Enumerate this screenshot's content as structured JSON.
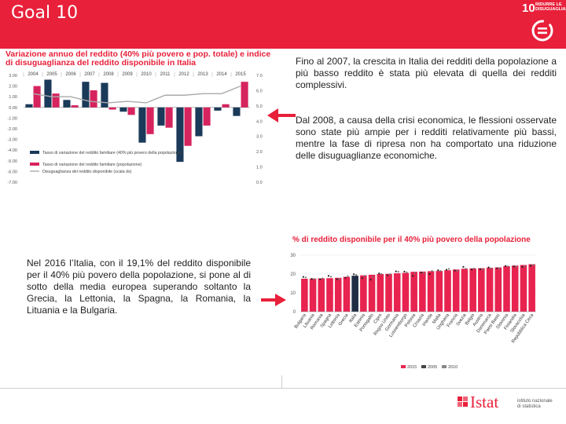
{
  "header": {
    "title": "Goal 10",
    "logo_number": "10",
    "logo_line1": "RIDURRE LE",
    "logo_line2": "DISUGUAGLIANZE"
  },
  "chart1": {
    "title": "Variazione annuo del reddito (40% più povero e pop. totale) e indice di disuguaglianza del reddito disponibile in Italia"
  },
  "chart2": {
    "title": "% di reddito disponibile per il 40% più povero della popolazione"
  },
  "text": {
    "paragraph1": "Fino al 2007, la crescita in Italia dei redditi della popolazione a più basso reddito è stata più elevata di quella dei redditi complessivi.",
    "paragraph2": "Dal 2008, a causa della crisi economica, le flessioni osservate sono state più ampie per i redditi relativamente più bassi, mentre la fase di ripresa non ha comportato una riduzione delle disuguaglianze economiche.",
    "paragraph3": "Nel 2016 l’Italia, con il 19,1% del reddito disponibile per il 40% più povero della popolazione, si pone al di sotto della media europea superando soltanto la Grecia, la Lettonia, la Spagna, la Romania, la Lituania e la Bulgaria."
  },
  "footer": {
    "brand": "Istat",
    "brand_sub1": "istituto nazionale",
    "brand_sub2": "di statistica"
  },
  "colors": {
    "brand_red": "#e8203a",
    "navy": "#1b3a5a",
    "magenta": "#d6245e",
    "gray_line": "#aaaaaa",
    "bar_pink": "#e8234f",
    "dark_bar": "#1f2e45"
  },
  "chart_data": [
    {
      "type": "bar",
      "title": "Variazione annuo del reddito (40% più povero e pop. totale) e indice di disuguaglianza del reddito disponibile in Italia",
      "categories": [
        "2004",
        "2005",
        "2006",
        "2007",
        "2008",
        "2009",
        "2010",
        "2011",
        "2012",
        "2013",
        "2014",
        "2015"
      ],
      "series": [
        {
          "name": "Tasso di variazione del reddito familiare (40% più povero della popolazione)",
          "type": "bar",
          "values": [
            0.3,
            2.6,
            0.7,
            2.4,
            2.3,
            -0.4,
            -3.3,
            -1.7,
            -5.1,
            -2.7,
            -0.3,
            -0.8
          ]
        },
        {
          "name": "Tasso di variazione del reddito familiare (popolazione)",
          "type": "bar",
          "values": [
            2.0,
            1.3,
            0.2,
            1.6,
            -0.2,
            -0.7,
            -2.5,
            -1.9,
            -3.6,
            -1.7,
            0.3,
            2.4
          ]
        },
        {
          "name": "Disuguaglianza del reddito disponibile (scala dx)",
          "type": "line",
          "values": [
            5.8,
            5.6,
            5.6,
            5.3,
            5.2,
            5.3,
            5.2,
            5.7,
            5.7,
            5.8,
            5.8,
            6.3
          ]
        }
      ],
      "ylim": [
        -7.0,
        3.0
      ],
      "y_ticks": [
        "3.00",
        "2.00",
        "1.00",
        "0.00",
        "-1.00",
        "-2.00",
        "-3.00",
        "-4.00",
        "-5.00",
        "-6.00",
        "-7.00"
      ],
      "y2lim": [
        0.0,
        7.0
      ],
      "y2_ticks": [
        "7.0",
        "6.0",
        "5.0",
        "4.0",
        "3.0",
        "2.0",
        "1.0",
        "0.0"
      ],
      "legend": [
        "Tasso di variazione del reddito familiare (40% più povero della popolazione)",
        "Tasso di variazione del reddito familiare (popolazione)",
        "Disuguaglianza del reddito disponibile (scala dx)"
      ],
      "legend_position": "bottom-center"
    },
    {
      "type": "bar",
      "title": "% di reddito disponibile per il 40% più povero della popolazione",
      "categories": [
        "Bulgaria",
        "Lituania",
        "Romania",
        "Spagna",
        "Lettonia",
        "Grecia",
        "Italia",
        "Estonia",
        "Portogallo",
        "Cipro",
        "Regno Unito",
        "Germania",
        "Lussemburgo",
        "Polonia",
        "Croazia",
        "Irlanda",
        "Malta",
        "Ungheria",
        "Francia",
        "Svezia",
        "Belgio",
        "Austria",
        "Danimarca",
        "Paesi Bassi",
        "Slovenia",
        "Finlandia",
        "Slovacchia",
        "Repubblica Ceca"
      ],
      "series": [
        {
          "name": "2015",
          "type": "bar",
          "values": [
            17.5,
            17.6,
            17.7,
            17.8,
            18.0,
            18.5,
            19.1,
            19.3,
            19.6,
            20.0,
            20.1,
            20.4,
            20.6,
            21.2,
            21.3,
            21.5,
            21.6,
            22.0,
            22.4,
            22.8,
            23.0,
            23.1,
            23.3,
            23.5,
            24.2,
            24.5,
            24.8,
            25.2
          ]
        },
        {
          "name": "2005",
          "type": "marker",
          "values": [
            18.5,
            17.4,
            17.2,
            19.0,
            17.2,
            18.0,
            19.9,
            17.8,
            17.0,
            20.3,
            19.3,
            21.4,
            21.3,
            19.0,
            20.8,
            20.0,
            22.0,
            22.3,
            21.8,
            23.8,
            22.4,
            22.6,
            23.5,
            23.1,
            24.3,
            24.0,
            23.8,
            24.4
          ]
        },
        {
          "name": "2010",
          "type": "marker",
          "values": [
            18.2,
            17.3,
            17.7,
            18.6,
            17.4,
            18.8,
            19.6,
            19.0,
            18.4,
            20.0,
            19.9,
            21.2,
            20.9,
            20.5,
            20.6,
            21.6,
            21.6,
            22.7,
            21.7,
            22.8,
            22.9,
            22.4,
            23.0,
            23.0,
            24.0,
            23.9,
            24.1,
            24.8
          ]
        }
      ],
      "ylim": [
        0,
        30
      ],
      "y_ticks": [
        "30",
        "20",
        "10",
        "0"
      ],
      "highlight": "Italia",
      "legend": [
        "2015",
        "2005",
        "2010"
      ],
      "legend_position": "bottom-center"
    }
  ]
}
